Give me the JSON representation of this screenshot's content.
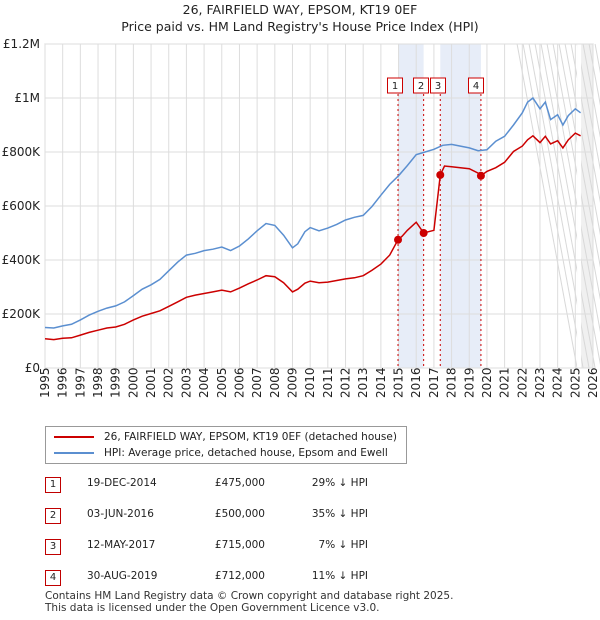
{
  "title": "26, FAIRFIELD WAY, EPSOM, KT19 0EF",
  "subtitle": "Price paid vs. HM Land Registry's House Price Index (HPI)",
  "chart_data": {
    "type": "line",
    "ylabel_ticks": [
      "£0",
      "£200K",
      "£400K",
      "£600K",
      "£800K",
      "£1M",
      "£1.2M"
    ],
    "ylim": [
      0,
      1200000
    ],
    "xlim": [
      1995,
      2026
    ],
    "x_ticks": [
      "1995",
      "1996",
      "1997",
      "1998",
      "1999",
      "2000",
      "2001",
      "2002",
      "2003",
      "2004",
      "2005",
      "2006",
      "2007",
      "2008",
      "2009",
      "2010",
      "2011",
      "2012",
      "2013",
      "2014",
      "2015",
      "2016",
      "2017",
      "2018",
      "2019",
      "2020",
      "2021",
      "2022",
      "2023",
      "2024",
      "2025",
      "2026"
    ],
    "grid": true,
    "series": [
      {
        "name": "26, FAIRFIELD WAY, EPSOM, KT19 0EF (detached house)",
        "color": "#cc0000",
        "x": [
          1995.0,
          1995.5,
          1996.0,
          1996.5,
          1997.0,
          1997.5,
          1998.0,
          1998.5,
          1999.0,
          1999.5,
          2000.0,
          2000.5,
          2001.0,
          2001.5,
          2002.0,
          2002.5,
          2003.0,
          2003.5,
          2004.0,
          2004.5,
          2005.0,
          2005.5,
          2006.0,
          2006.5,
          2007.0,
          2007.5,
          2008.0,
          2008.5,
          2009.0,
          2009.3,
          2009.7,
          2010.0,
          2010.5,
          2011.0,
          2011.5,
          2012.0,
          2012.5,
          2013.0,
          2013.5,
          2014.0,
          2014.5,
          2014.97,
          2015.2,
          2015.5,
          2016.0,
          2016.42,
          2016.7,
          2017.0,
          2017.36,
          2017.6,
          2018.0,
          2018.5,
          2019.0,
          2019.5,
          2019.66,
          2020.0,
          2020.5,
          2021.0,
          2021.5,
          2022.0,
          2022.3,
          2022.6,
          2023.0,
          2023.3,
          2023.6,
          2024.0,
          2024.3,
          2024.6,
          2025.0,
          2025.3
        ],
        "values": [
          108000,
          105000,
          110000,
          112000,
          122000,
          132000,
          140000,
          148000,
          152000,
          162000,
          178000,
          192000,
          202000,
          212000,
          228000,
          245000,
          262000,
          270000,
          276000,
          282000,
          288000,
          282000,
          296000,
          312000,
          326000,
          342000,
          338000,
          316000,
          282000,
          292000,
          314000,
          322000,
          316000,
          318000,
          324000,
          330000,
          334000,
          342000,
          362000,
          385000,
          418000,
          475000,
          488000,
          510000,
          540000,
          500000,
          505000,
          510000,
          715000,
          748000,
          745000,
          742000,
          738000,
          722000,
          712000,
          728000,
          742000,
          762000,
          802000,
          822000,
          845000,
          860000,
          835000,
          858000,
          830000,
          842000,
          815000,
          845000,
          870000,
          860000
        ]
      },
      {
        "name": "HPI: Average price, detached house, Epsom and Ewell",
        "color": "#5b8fd0",
        "x": [
          1995.0,
          1995.5,
          1996.0,
          1996.5,
          1997.0,
          1997.5,
          1998.0,
          1998.5,
          1999.0,
          1999.5,
          2000.0,
          2000.5,
          2001.0,
          2001.5,
          2002.0,
          2002.5,
          2003.0,
          2003.5,
          2004.0,
          2004.5,
          2005.0,
          2005.5,
          2006.0,
          2006.5,
          2007.0,
          2007.5,
          2008.0,
          2008.5,
          2009.0,
          2009.3,
          2009.7,
          2010.0,
          2010.5,
          2011.0,
          2011.5,
          2012.0,
          2012.5,
          2013.0,
          2013.5,
          2014.0,
          2014.5,
          2015.0,
          2015.5,
          2016.0,
          2016.5,
          2017.0,
          2017.5,
          2018.0,
          2018.5,
          2019.0,
          2019.5,
          2020.0,
          2020.5,
          2021.0,
          2021.5,
          2022.0,
          2022.3,
          2022.6,
          2023.0,
          2023.3,
          2023.6,
          2024.0,
          2024.3,
          2024.6,
          2025.0,
          2025.3
        ],
        "values": [
          150000,
          148000,
          156000,
          162000,
          178000,
          196000,
          210000,
          222000,
          230000,
          245000,
          268000,
          292000,
          308000,
          328000,
          360000,
          392000,
          418000,
          425000,
          435000,
          440000,
          448000,
          435000,
          452000,
          478000,
          508000,
          535000,
          528000,
          492000,
          445000,
          460000,
          505000,
          520000,
          508000,
          518000,
          532000,
          548000,
          558000,
          565000,
          598000,
          640000,
          680000,
          712000,
          750000,
          790000,
          800000,
          810000,
          825000,
          828000,
          822000,
          815000,
          805000,
          808000,
          840000,
          858000,
          900000,
          945000,
          985000,
          1000000,
          960000,
          985000,
          920000,
          938000,
          900000,
          935000,
          960000,
          945000
        ]
      }
    ],
    "events": [
      {
        "label": "1",
        "x": 2014.97,
        "value": 475000
      },
      {
        "label": "2",
        "x": 2016.42,
        "value": 500000
      },
      {
        "label": "3",
        "x": 2017.36,
        "value": 715000
      },
      {
        "label": "4",
        "x": 2019.66,
        "value": 712000
      }
    ]
  },
  "legend": {
    "property": "26, FAIRFIELD WAY, EPSOM, KT19 0EF (detached house)",
    "hpi": "HPI: Average price, detached house, Epsom and Ewell"
  },
  "transactions": [
    {
      "num": "1",
      "date": "19-DEC-2014",
      "price": "£475,000",
      "hpi": "29% ↓ HPI"
    },
    {
      "num": "2",
      "date": "03-JUN-2016",
      "price": "£500,000",
      "hpi": "35% ↓ HPI"
    },
    {
      "num": "3",
      "date": "12-MAY-2017",
      "price": "£715,000",
      "hpi": "7% ↓ HPI"
    },
    {
      "num": "4",
      "date": "30-AUG-2019",
      "price": "£712,000",
      "hpi": "11% ↓ HPI"
    }
  ],
  "footer": {
    "line1": "Contains HM Land Registry data © Crown copyright and database right 2025.",
    "line2": "This data is licensed under the Open Government Licence v3.0."
  }
}
